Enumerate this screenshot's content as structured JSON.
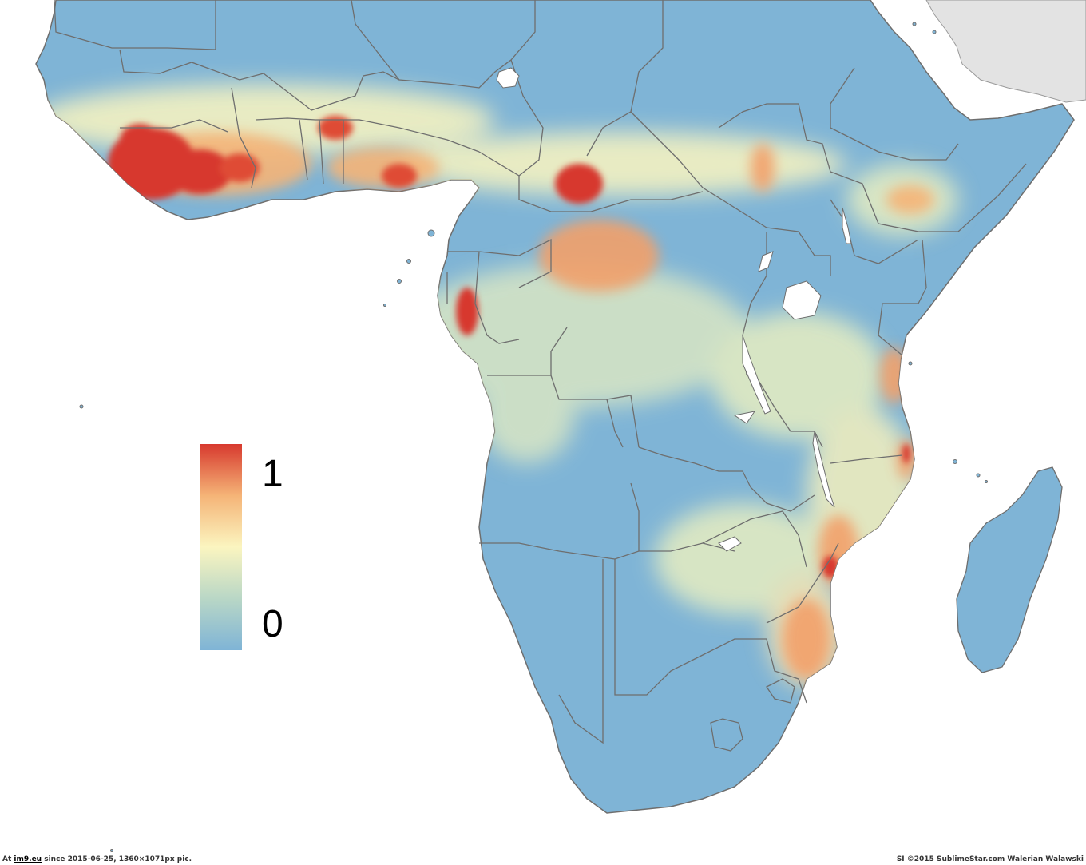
{
  "colors": {
    "ocean": "#ffffff",
    "land_low": "#7fb4d6",
    "land_mid_low": "#b9d7c6",
    "land_mid": "#fbf5c0",
    "land_mid_high": "#f5b477",
    "land_high": "#d7392e",
    "border": "#6e6e6e",
    "outside_region": "#e3e3e3",
    "lakes": "#ffffff"
  },
  "legend": {
    "max_label": "1",
    "min_label": "0",
    "max_value": 1,
    "min_value": 0,
    "gradient": [
      "#d7392e",
      "#f5b477",
      "#fbf5c0",
      "#b9d7c6",
      "#7fb4d6"
    ]
  },
  "footer": {
    "left_prefix": "At",
    "left_link": "im9.eu",
    "left_suffix": "since 2015-06-25, 1360×1071px pic.",
    "right": "SI ©2015 SublimeStar.com Walerian Walawski"
  }
}
